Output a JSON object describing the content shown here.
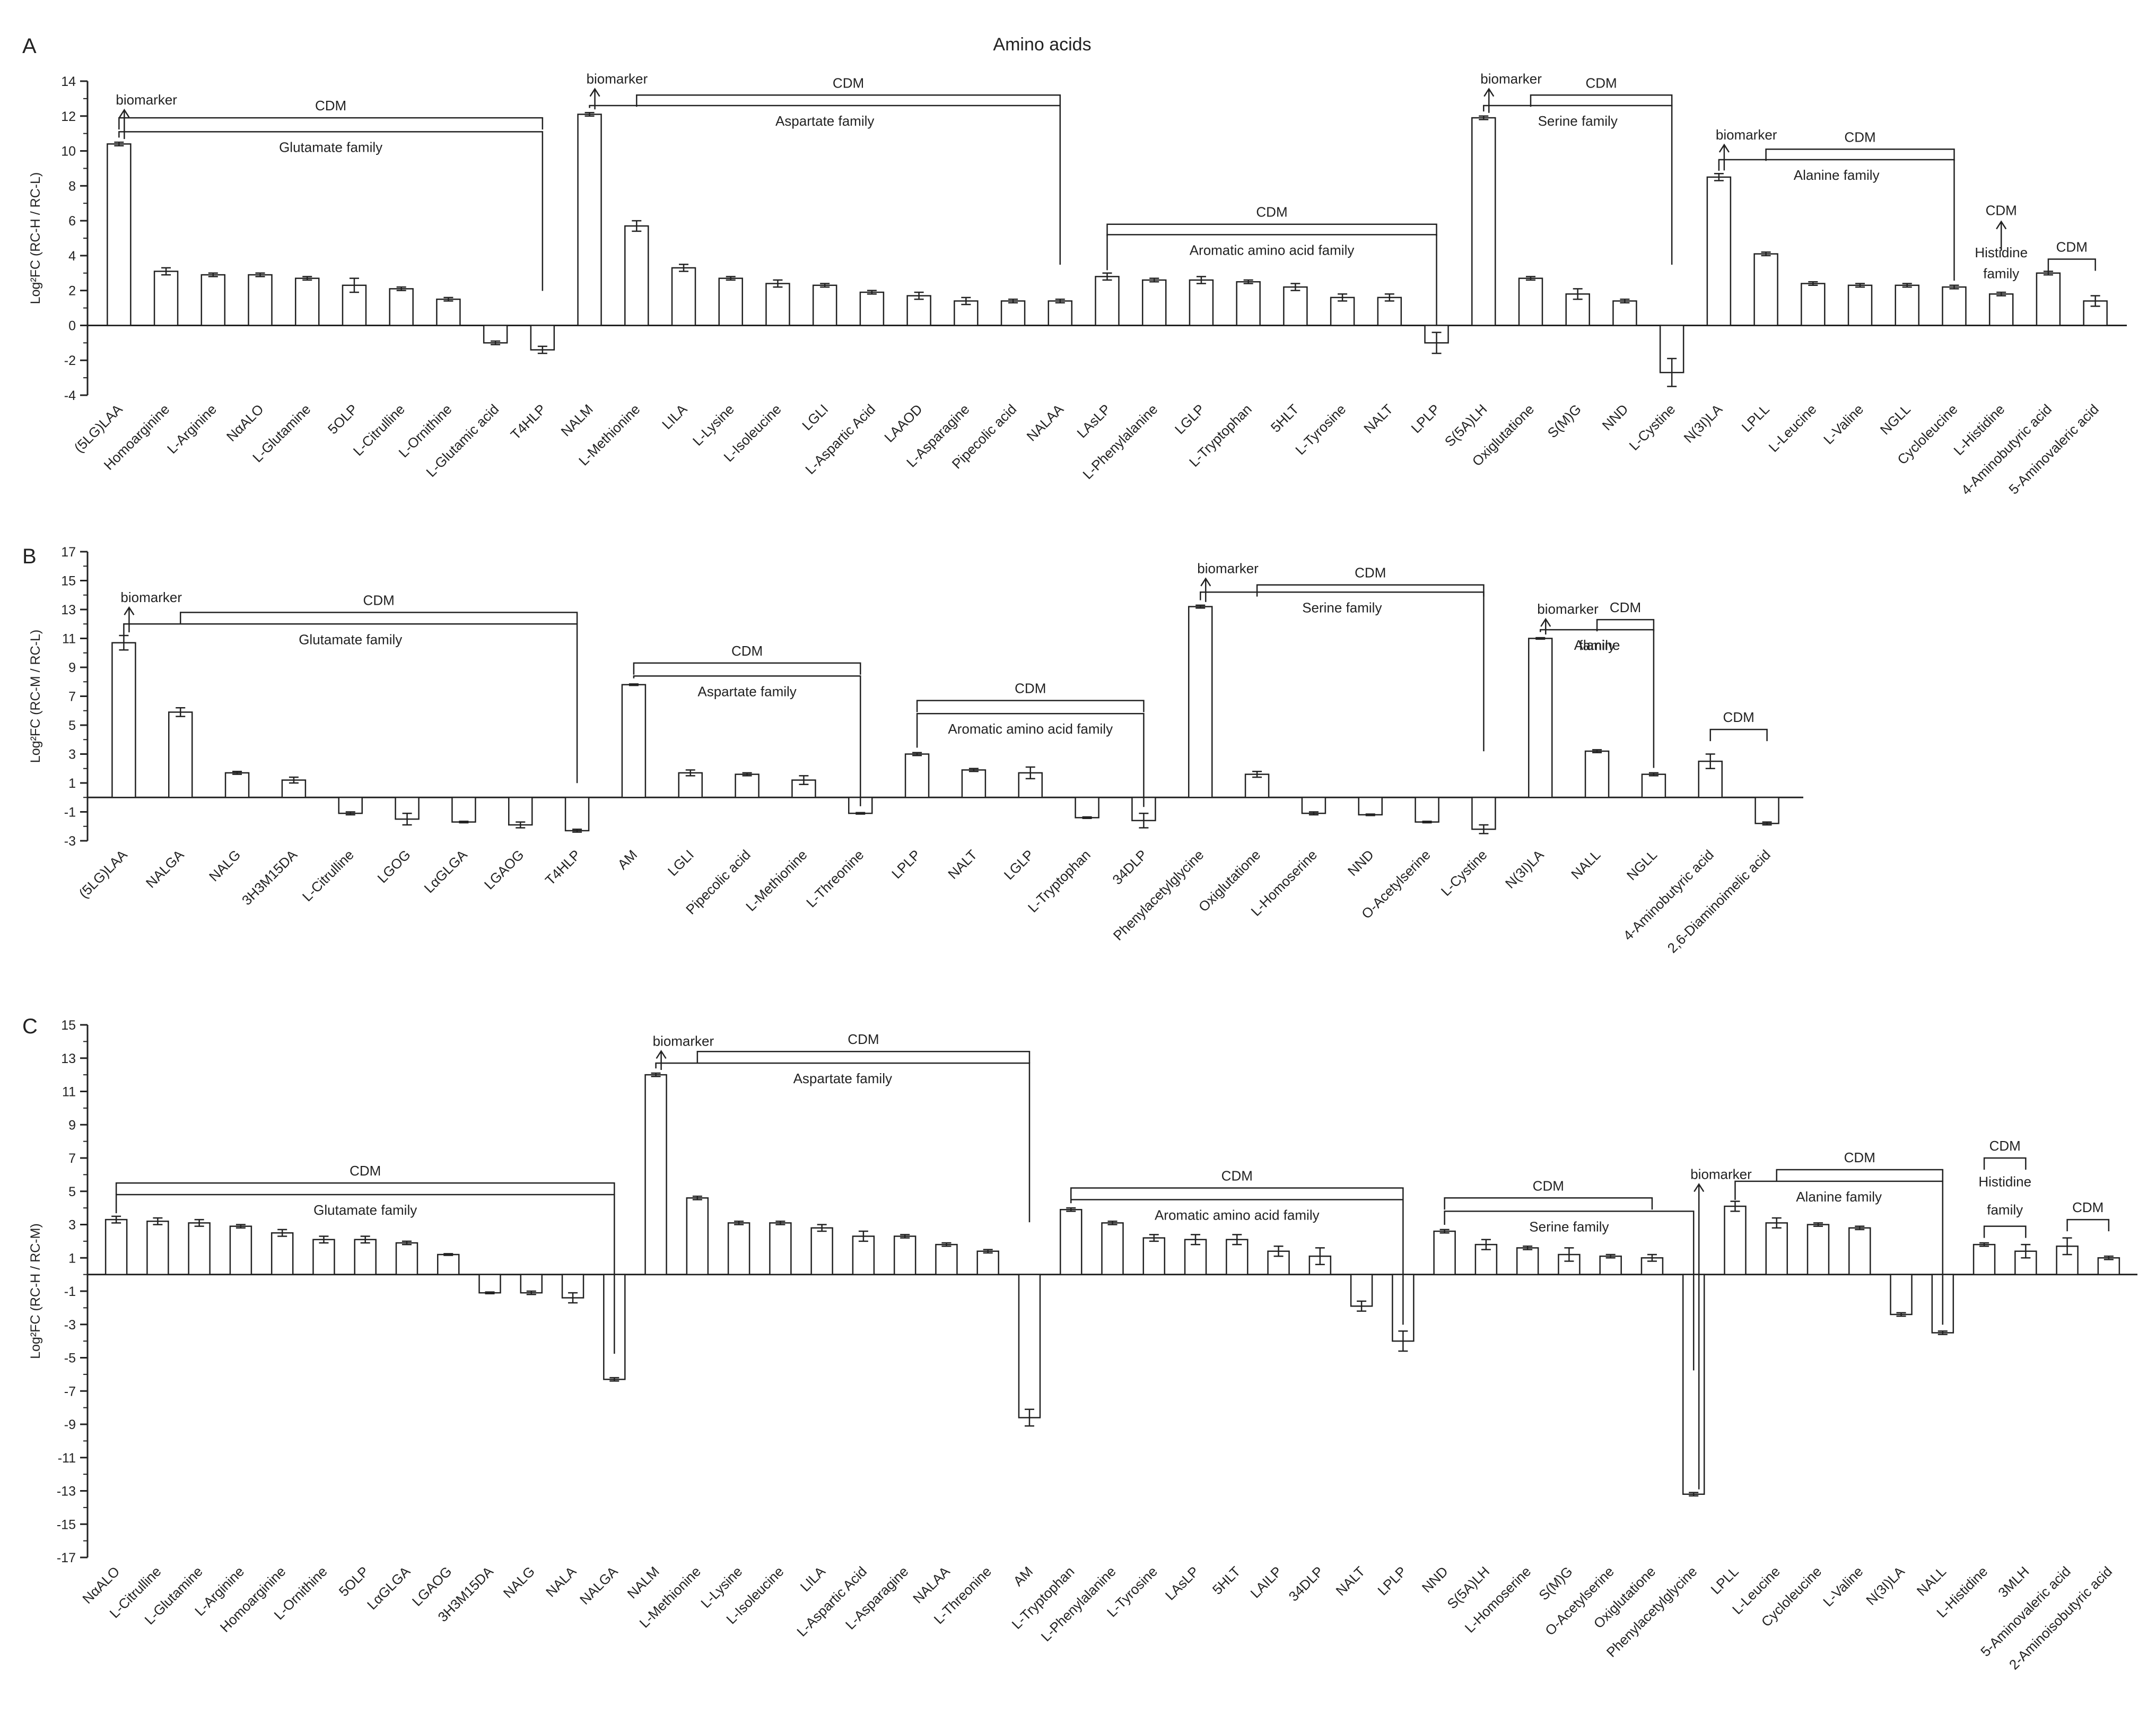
{
  "figure": {
    "title": "Amino acids"
  },
  "chart_data": [
    {
      "panel": "A",
      "type": "bar",
      "ylabel": "Log²FC (RC-H / RC-L)",
      "ylim": [
        -4,
        14
      ],
      "yticks": [
        -4,
        -2,
        0,
        2,
        4,
        6,
        8,
        10,
        12,
        14
      ],
      "categories": [
        "(5LG)LAA",
        "Homoarginine",
        "L-Arginine",
        "NαALO",
        "L-Glutamine",
        "5OLP",
        "L-Citrulline",
        "L-Ornithine",
        "L-Glutamic acid",
        "T4HLP",
        "NALM",
        "L-Methionine",
        "LILA",
        "L-Lysine",
        "L-Isoleucine",
        "LGLI",
        "L-Aspartic Acid",
        "LAAOD",
        "L-Asparagine",
        "Pipecolic acid",
        "NALAA",
        "LAsLP",
        "L-Phenylalanine",
        "LGLP",
        "L-Tryptophan",
        "5HLT",
        "L-Tyrosine",
        "NALT",
        "LPLP",
        "S(5A)LH",
        "Oxiglutatione",
        "S(M)G",
        "NND",
        "L-Cystine",
        "N(3I)LA",
        "LPLL",
        "L-Leucine",
        "L-Valine",
        "NGLL",
        "Cycloleucine",
        "L-Histidine",
        "4-Aminobutyric acid",
        "5-Aminovaleric acid"
      ],
      "values": [
        10.4,
        3.1,
        2.9,
        2.9,
        2.7,
        2.3,
        2.1,
        1.5,
        -1.0,
        -1.4,
        12.1,
        5.7,
        3.3,
        2.7,
        2.4,
        2.3,
        1.9,
        1.7,
        1.4,
        1.4,
        1.4,
        2.8,
        2.6,
        2.6,
        2.5,
        2.2,
        1.6,
        1.6,
        -1.0,
        11.9,
        2.7,
        1.8,
        1.4,
        -2.7,
        8.5,
        4.1,
        2.4,
        2.3,
        2.3,
        2.2,
        1.8,
        3.0,
        1.4
      ],
      "errors": [
        0.1,
        0.2,
        0.1,
        0.1,
        0.1,
        0.4,
        0.1,
        0.1,
        0.1,
        0.2,
        0.1,
        0.3,
        0.2,
        0.1,
        0.2,
        0.1,
        0.1,
        0.2,
        0.2,
        0.1,
        0.1,
        0.2,
        0.1,
        0.2,
        0.1,
        0.2,
        0.2,
        0.2,
        0.6,
        0.1,
        0.1,
        0.3,
        0.1,
        0.8,
        0.2,
        0.1,
        0.1,
        0.1,
        0.1,
        0.1,
        0.1,
        0.1,
        0.3
      ],
      "annotations": [
        {
          "type": "bracket",
          "label": "CDM",
          "from": 0,
          "to": 9,
          "y": 11.9,
          "side": "above"
        },
        {
          "type": "bracket",
          "label": "Glutamate family",
          "from": 0,
          "to": 9,
          "y": 11.1,
          "side": "below"
        },
        {
          "type": "biomarker",
          "label": "biomarker",
          "bar": 0,
          "y": 12.9
        },
        {
          "type": "bracket",
          "label": "CDM",
          "from": 11,
          "to": 20,
          "y": 13.2,
          "side": "above"
        },
        {
          "type": "bracket",
          "label": "Aspartate family",
          "from": 10,
          "to": 20,
          "y": 12.6,
          "side": "below"
        },
        {
          "type": "biomarker",
          "label": "biomarker",
          "bar": 10,
          "y": 14.1
        },
        {
          "type": "bracket",
          "label": "CDM",
          "from": 21,
          "to": 28,
          "y": 5.8,
          "side": "above"
        },
        {
          "type": "bracket",
          "label": "Aromatic amino acid family",
          "from": 21,
          "to": 28,
          "y": 5.2,
          "side": "below"
        },
        {
          "type": "bracket",
          "label": "CDM",
          "from": 30,
          "to": 33,
          "y": 13.2,
          "side": "above"
        },
        {
          "type": "bracket",
          "label": "Serine family",
          "from": 29,
          "to": 33,
          "y": 12.6,
          "side": "below"
        },
        {
          "type": "biomarker",
          "label": "biomarker",
          "bar": 29,
          "y": 14.1
        },
        {
          "type": "bracket",
          "label": "CDM",
          "from": 35,
          "to": 39,
          "y": 10.1,
          "side": "above"
        },
        {
          "type": "bracket",
          "label": "Alanine family",
          "from": 34,
          "to": 39,
          "y": 9.5,
          "side": "below"
        },
        {
          "type": "biomarker",
          "label": "biomarker",
          "bar": 34,
          "y": 10.9
        },
        {
          "type": "arrow",
          "label": "CDM",
          "bar": 40,
          "y": 6.5
        },
        {
          "type": "text",
          "label": "Histidine",
          "bar": 40,
          "y": 3.9
        },
        {
          "type": "text",
          "label": "family",
          "bar": 40,
          "y": 2.7
        },
        {
          "type": "bracket",
          "label": "CDM",
          "from": 41,
          "to": 42,
          "y": 3.8,
          "side": "above"
        }
      ]
    },
    {
      "panel": "B",
      "type": "bar",
      "ylabel": "Log²FC (RC-M / RC-L)",
      "ylim": [
        -3,
        17
      ],
      "yticks": [
        -3,
        -1,
        1,
        3,
        5,
        7,
        9,
        11,
        13,
        15,
        17
      ],
      "categories": [
        "(5LG)LAA",
        "NALGA",
        "NALG",
        "3H3M15DA",
        "L-Citrulline",
        "LGOG",
        "LαGLGA",
        "LGAOG",
        "T4HLP",
        "AM",
        "LGLI",
        "Pipecolic acid",
        "L-Methionine",
        "L-Threonine",
        "LPLP",
        "NALT",
        "LGLP",
        "L-Tryptophan",
        "34DLP",
        "Phenylacetylglycine",
        "Oxiglutatione",
        "L-Homoserine",
        "NND",
        "O-Acetylserine",
        "L-Cystine",
        "N(3I)LA",
        "NALL",
        "NGLL",
        "4-Aminobutyric acid",
        "2,6-Diaminoimelic acid"
      ],
      "values": [
        10.7,
        5.9,
        1.7,
        1.2,
        -1.1,
        -1.5,
        -1.7,
        -1.9,
        -2.3,
        7.8,
        1.7,
        1.6,
        1.2,
        -1.1,
        3.0,
        1.9,
        1.7,
        -1.4,
        -1.6,
        13.2,
        1.6,
        -1.1,
        -1.2,
        -1.7,
        -2.2,
        11.0,
        3.2,
        1.6,
        2.5,
        -1.8
      ],
      "errors": [
        0.5,
        0.3,
        0.1,
        0.2,
        0.1,
        0.4,
        0.05,
        0.2,
        0.1,
        0.05,
        0.2,
        0.1,
        0.3,
        0.05,
        0.1,
        0.1,
        0.4,
        0.05,
        0.5,
        0.1,
        0.2,
        0.1,
        0.05,
        0.05,
        0.3,
        0.05,
        0.1,
        0.1,
        0.5,
        0.1
      ],
      "annotations": [
        {
          "type": "bracket",
          "label": "CDM",
          "from": 1,
          "to": 8,
          "y": 12.8,
          "side": "above"
        },
        {
          "type": "bracket",
          "label": "Glutamate family",
          "from": 0,
          "to": 8,
          "y": 12.0,
          "side": "below"
        },
        {
          "type": "biomarker",
          "label": "biomarker",
          "bar": 0,
          "y": 13.8
        },
        {
          "type": "bracket",
          "label": "CDM",
          "from": 9,
          "to": 13,
          "y": 9.3,
          "side": "above"
        },
        {
          "type": "bracket",
          "label": "Aspartate family",
          "from": 9,
          "to": 13,
          "y": 8.4,
          "side": "below"
        },
        {
          "type": "bracket",
          "label": "CDM",
          "from": 14,
          "to": 18,
          "y": 6.7,
          "side": "above"
        },
        {
          "type": "bracket",
          "label": "Aromatic amino acid family",
          "from": 14,
          "to": 18,
          "y": 5.8,
          "side": "below"
        },
        {
          "type": "bracket",
          "label": "CDM",
          "from": 20,
          "to": 24,
          "y": 14.7,
          "side": "above"
        },
        {
          "type": "bracket",
          "label": "Serine family",
          "from": 19,
          "to": 24,
          "y": 14.2,
          "side": "below"
        },
        {
          "type": "biomarker",
          "label": "biomarker",
          "bar": 19,
          "y": 15.8
        },
        {
          "type": "bracket",
          "label": "CDM",
          "from": 26,
          "to": 27,
          "y": 12.3,
          "side": "above"
        },
        {
          "type": "bracket",
          "label": "Alanine",
          "from": 25,
          "to": 27,
          "y": 11.6,
          "side": "below"
        },
        {
          "type": "text",
          "label": "family",
          "bar": 26,
          "y": 10.2
        },
        {
          "type": "biomarker",
          "label": "biomarker",
          "bar": 25,
          "y": 13.0
        },
        {
          "type": "bracket",
          "label": "CDM",
          "from": 28,
          "to": 29,
          "y": 4.7,
          "side": "above"
        }
      ]
    },
    {
      "panel": "C",
      "type": "bar",
      "ylabel": "Log²FC (RC-H / RC-M)",
      "ylim": [
        -17,
        15
      ],
      "yticks": [
        -17,
        -15,
        -13,
        -11,
        -9,
        -7,
        -5,
        -3,
        -1,
        1,
        3,
        5,
        7,
        9,
        11,
        13,
        15
      ],
      "categories": [
        "NαALO",
        "L-Citrulline",
        "L-Glutamine",
        "L-Arginine",
        "Homoarginine",
        "L-Ornithine",
        "5OLP",
        "LαGLGA",
        "LGAOG",
        "3H3M15DA",
        "NALG",
        "NALA",
        "NALGA",
        "NALM",
        "L-Methionine",
        "L-Lysine",
        "L-Isoleucine",
        "LILA",
        "L-Aspartic Acid",
        "L-Asparagine",
        "NALAA",
        "L-Threonine",
        "AM",
        "L-Tryptophan",
        "L-Phenylalanine",
        "L-Tyrosine",
        "LAsLP",
        "5HLT",
        "LAILP",
        "34DLP",
        "NALT",
        "LPLP",
        "NND",
        "S(5A)LH",
        "L-Homoserine",
        "S(M)G",
        "O-Acetylserine",
        "Oxiglutatione",
        "Phenylacetylglycine",
        "LPLL",
        "L-Leucine",
        "Cycloleucine",
        "L-Valine",
        "N(3I)LA",
        "NALL",
        "L-Histidine",
        "3MLH",
        "5-Aminovaleric acid",
        "2-Aminoisobutyric acid"
      ],
      "values": [
        3.3,
        3.2,
        3.1,
        2.9,
        2.5,
        2.1,
        2.1,
        1.9,
        1.2,
        -1.1,
        -1.1,
        -1.4,
        -6.3,
        12.0,
        4.6,
        3.1,
        3.1,
        2.8,
        2.3,
        2.3,
        1.8,
        1.4,
        -8.6,
        3.9,
        3.1,
        2.2,
        2.1,
        2.1,
        1.4,
        1.1,
        -1.9,
        -4.0,
        2.6,
        1.8,
        1.6,
        1.2,
        1.1,
        1.0,
        -13.2,
        4.1,
        3.1,
        3.0,
        2.8,
        -2.4,
        -3.5,
        1.8,
        1.4,
        1.7,
        1.0
      ],
      "errors": [
        0.2,
        0.2,
        0.2,
        0.1,
        0.2,
        0.2,
        0.2,
        0.1,
        0.05,
        0.05,
        0.1,
        0.3,
        0.1,
        0.1,
        0.1,
        0.1,
        0.1,
        0.2,
        0.3,
        0.1,
        0.1,
        0.1,
        0.5,
        0.1,
        0.1,
        0.2,
        0.3,
        0.3,
        0.3,
        0.5,
        0.3,
        0.6,
        0.1,
        0.3,
        0.1,
        0.4,
        0.1,
        0.2,
        0.1,
        0.3,
        0.3,
        0.1,
        0.1,
        0.1,
        0.1,
        0.1,
        0.4,
        0.5,
        0.1
      ],
      "annotations": [
        {
          "type": "bracket",
          "label": "CDM",
          "from": 0,
          "to": 12,
          "y": 5.5,
          "side": "above"
        },
        {
          "type": "bracket",
          "label": "Glutamate family",
          "from": 0,
          "to": 12,
          "y": 4.8,
          "side": "below"
        },
        {
          "type": "bracket",
          "label": "CDM",
          "from": 14,
          "to": 22,
          "y": 13.4,
          "side": "above"
        },
        {
          "type": "bracket",
          "label": "Aspartate family",
          "from": 13,
          "to": 22,
          "y": 12.7,
          "side": "below"
        },
        {
          "type": "biomarker",
          "label": "biomarker",
          "bar": 13,
          "y": 14.0
        },
        {
          "type": "bracket",
          "label": "CDM",
          "from": 23,
          "to": 31,
          "y": 5.2,
          "side": "above"
        },
        {
          "type": "bracket",
          "label": "Aromatic amino acid family",
          "from": 23,
          "to": 31,
          "y": 4.5,
          "side": "below"
        },
        {
          "type": "bracket",
          "label": "CDM",
          "from": 32,
          "to": 37,
          "y": 4.6,
          "side": "above"
        },
        {
          "type": "bracket",
          "label": "Serine family",
          "from": 32,
          "to": 38,
          "y": 3.8,
          "side": "below"
        },
        {
          "type": "biomarker",
          "label": "biomarker",
          "bar": 38,
          "y": 6.0
        },
        {
          "type": "bracket",
          "label": "CDM",
          "from": 40,
          "to": 44,
          "y": 6.3,
          "side": "above"
        },
        {
          "type": "bracket",
          "label": "Alanine family",
          "from": 39,
          "to": 44,
          "y": 5.6,
          "side": "below"
        },
        {
          "type": "bracket",
          "label": "CDM",
          "from": 45,
          "to": 46,
          "y": 7.0,
          "side": "above"
        },
        {
          "type": "text",
          "label": "Histidine",
          "bar": 45.5,
          "y": 5.3
        },
        {
          "type": "text",
          "label": "family",
          "bar": 45.5,
          "y": 3.6
        },
        {
          "type": "bracket",
          "label": "",
          "from": 45,
          "to": 46,
          "y": 2.9,
          "side": "above"
        },
        {
          "type": "bracket",
          "label": "CDM",
          "from": 47,
          "to": 48,
          "y": 3.3,
          "side": "above"
        }
      ]
    }
  ]
}
